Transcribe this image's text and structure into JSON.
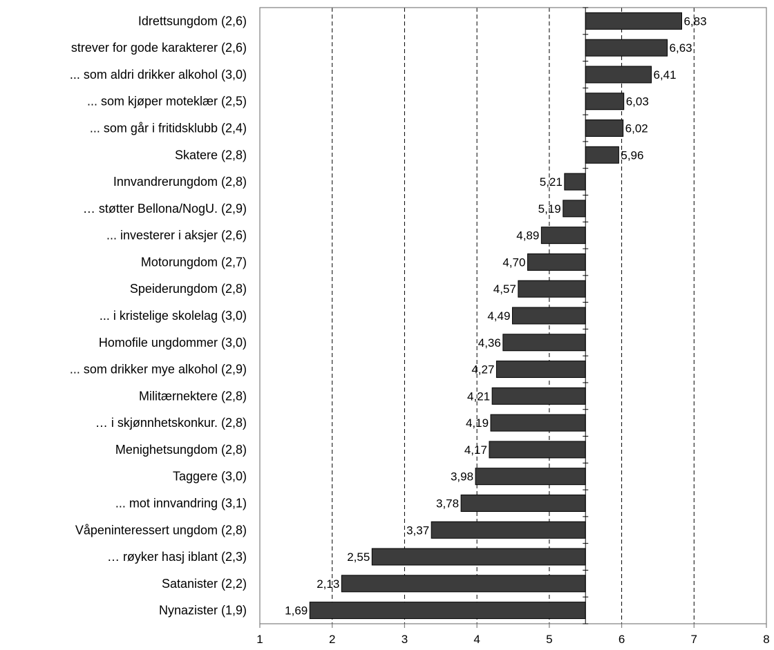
{
  "chart_data": {
    "type": "bar",
    "orientation": "horizontal",
    "baseline": 5.5,
    "categories": [
      "Idrettsungdom (2,6)",
      "strever for gode karakterer (2,6)",
      "... som aldri drikker alkohol (3,0)",
      "... som kjøper moteklær (2,5)",
      "... som går i fritidsklubb (2,4)",
      "Skatere (2,8)",
      "Innvandrerungdom (2,8)",
      "… støtter Bellona/NogU. (2,9)",
      "... investerer i aksjer (2,6)",
      "Motorungdom (2,7)",
      "Speiderungdom (2,8)",
      "... i kristelige skolelag (3,0)",
      "Homofile ungdommer (3,0)",
      "... som drikker mye alkohol (2,9)",
      "Militærnektere (2,8)",
      "… i skjønnhetskonkur. (2,8)",
      "Menighetsungdom (2,8)",
      "Taggere (3,0)",
      "... mot innvandring (3,1)",
      "Våpeninteressert ungdom (2,8)",
      "… røyker hasj iblant (2,3)",
      "Satanister (2,2)",
      "Nynazister (1,9)"
    ],
    "values": [
      6.83,
      6.63,
      6.41,
      6.03,
      6.02,
      5.96,
      5.21,
      5.19,
      4.89,
      4.7,
      4.57,
      4.49,
      4.36,
      4.27,
      4.21,
      4.19,
      4.17,
      3.98,
      3.78,
      3.37,
      2.55,
      2.13,
      1.69
    ],
    "value_labels": [
      "6,83",
      "6,63",
      "6,41",
      "6,03",
      "6,02",
      "5,96",
      "5,21",
      "5,19",
      "4,89",
      "4,70",
      "4,57",
      "4,49",
      "4,36",
      "4,27",
      "4,21",
      "4,19",
      "4,17",
      "3,98",
      "3,78",
      "3,37",
      "2,55",
      "2,13",
      "1,69"
    ],
    "xlim": [
      1,
      8
    ],
    "xticks": [
      "1",
      "2",
      "3",
      "4",
      "5",
      "6",
      "7",
      "8"
    ],
    "grid": "vertical dashed",
    "title": "",
    "xlabel": "",
    "ylabel": "",
    "colors": {
      "bar": "#3c3c3c",
      "bar_stroke": "#000000",
      "plot_border": "#7f7f7f",
      "grid": "#000000"
    }
  }
}
